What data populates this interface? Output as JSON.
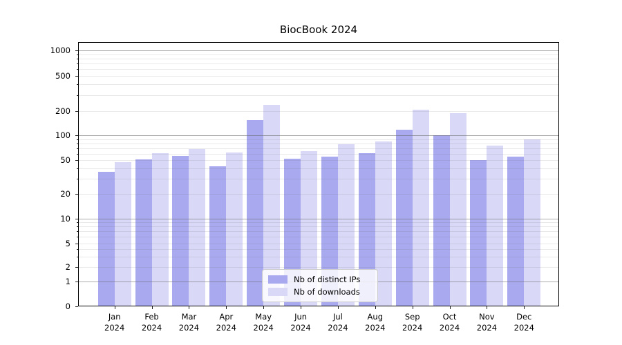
{
  "chart_data": {
    "type": "bar",
    "title": "BiocBook 2024",
    "categories": [
      "Jan",
      "Feb",
      "Mar",
      "Apr",
      "May",
      "Jun",
      "Jul",
      "Aug",
      "Sep",
      "Oct",
      "Nov",
      "Dec"
    ],
    "x_tick_year": "2024",
    "series": [
      {
        "name": "Nb of distinct IPs",
        "color": "#a9a9f0",
        "values": [
          36,
          51,
          56,
          42,
          153,
          52,
          55,
          60,
          116,
          100,
          50,
          55
        ]
      },
      {
        "name": "Nb of downloads",
        "color": "#d9d9f7",
        "values": [
          47,
          61,
          68,
          62,
          232,
          64,
          77,
          83,
          207,
          186,
          74,
          88
        ]
      }
    ],
    "y_axis": {
      "scale": "symlog",
      "tick_values": [
        0,
        1,
        2,
        5,
        10,
        20,
        50,
        100,
        200,
        500,
        1000
      ],
      "tick_labels": [
        "0",
        "1",
        "2",
        "5",
        "10",
        "20",
        "50",
        "100",
        "200",
        "500",
        "1000"
      ]
    },
    "grid": true,
    "legend_position": "inside-bottom-center",
    "ylim": [
      0,
      1300
    ]
  },
  "colors": {
    "bar_distinct_ips": "#a9a9f0",
    "bar_downloads": "#d9d9f7",
    "major_grid": "#ababab",
    "minor_grid": "#eaeaea",
    "axis_frame": "#000000"
  }
}
